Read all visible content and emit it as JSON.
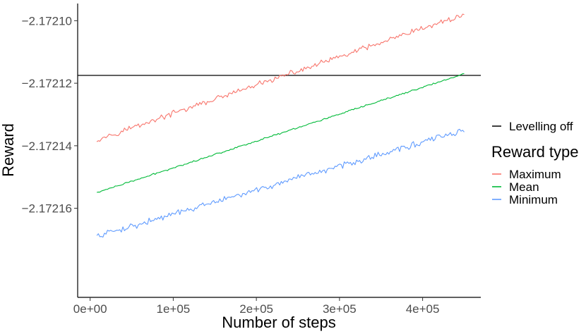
{
  "chart_data": {
    "type": "line",
    "xlabel": "Number of steps",
    "ylabel": "Reward",
    "x_ticks": [
      0,
      100000,
      200000,
      300000,
      400000
    ],
    "x_tick_labels": [
      "0e+00",
      "1e+05",
      "2e+05",
      "3e+05",
      "4e+05"
    ],
    "y_ticks": [
      -2.17216,
      -2.17214,
      -2.17212,
      -2.1721
    ],
    "y_tick_labels": [
      "-2.17216",
      "-2.17214",
      "-2.17212",
      "-2.17210"
    ],
    "xlim": [
      -15000,
      470000
    ],
    "ylim": [
      -2.1721885,
      -2.1720945
    ],
    "grid": false,
    "legend_position": "right",
    "hline": {
      "label": "Levelling off",
      "y": -2.1721175,
      "color": "#000000"
    },
    "legend_title": "Reward type",
    "series": [
      {
        "name": "Maximum",
        "color": "#F8766D",
        "x_start": 8000,
        "x_end": 450000,
        "n_points": 240,
        "trend_start": -2.172138,
        "trend_end": -2.172098,
        "noise_amplitude": 1.1e-06
      },
      {
        "name": "Mean",
        "color": "#00BA38",
        "x_start": 8000,
        "x_end": 450000,
        "n_points": 240,
        "trend_start": -2.172155,
        "trend_end": -2.172117,
        "noise_amplitude": 3e-07
      },
      {
        "name": "Minimum",
        "color": "#619CFF",
        "x_start": 8000,
        "x_end": 450000,
        "n_points": 240,
        "trend_start": -2.172169,
        "trend_end": -2.172135,
        "noise_amplitude": 1.2e-06
      }
    ]
  }
}
